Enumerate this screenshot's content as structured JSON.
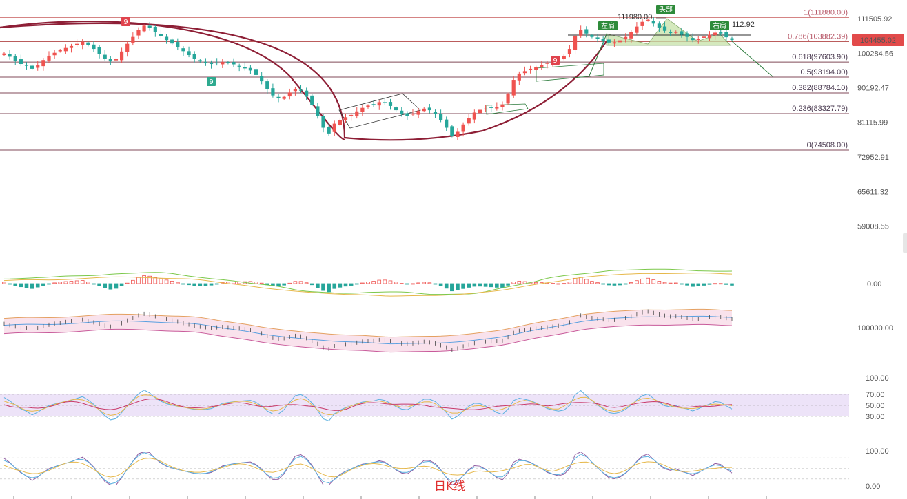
{
  "chart_data": {
    "type": "candlestick",
    "timeframe_label": "日K线",
    "last_price": 104455.02,
    "last_price_label": "104455.02",
    "price_axis": {
      "scale": "log",
      "ticks": [
        {
          "value": 111505.92,
          "label": "111505.92"
        },
        {
          "value": 100284.56,
          "label": "100284.56"
        },
        {
          "value": 90192.47,
          "label": "90192.47"
        },
        {
          "value": 81115.99,
          "label": "81115.99"
        },
        {
          "value": 72952.91,
          "label": "72952.91"
        },
        {
          "value": 65611.32,
          "label": "65611.32"
        },
        {
          "value": 59008.55,
          "label": "59008.55"
        }
      ]
    },
    "fibonacci_levels": [
      {
        "ratio": "1",
        "value": 111880.0,
        "label": "1(111880.00)"
      },
      {
        "ratio": "0.786",
        "value": 103882.39,
        "label": "0.786(103882.39)"
      },
      {
        "ratio": "0.618",
        "value": 97603.9,
        "label": "0.618(97603.90)"
      },
      {
        "ratio": "0.5",
        "value": 93194.0,
        "label": "0.5(93194.00)"
      },
      {
        "ratio": "0.382",
        "value": 88784.1,
        "label": "0.382(88784.10)"
      },
      {
        "ratio": "0.236",
        "value": 83327.79,
        "label": "0.236(83327.79)"
      },
      {
        "ratio": "0",
        "value": 74508.0,
        "label": "0(74508.00)"
      }
    ],
    "annotations": {
      "peak_label": "111980.00",
      "right_peak_label": "112.92",
      "left_shoulder": "左肩",
      "head": "头部",
      "right_shoulder": "右肩",
      "td_nine": "9"
    },
    "closes": [
      100200,
      99200,
      98000,
      97000,
      96500,
      95600,
      96800,
      98200,
      99500,
      100400,
      101200,
      101900,
      102500,
      103200,
      103800,
      102800,
      101600,
      100100,
      98600,
      97800,
      98600,
      100800,
      103200,
      105400,
      107600,
      109100,
      108400,
      106900,
      105600,
      104400,
      103300,
      102100,
      100900,
      99700,
      98600,
      97800,
      97300,
      97000,
      97200,
      97600,
      97300,
      96900,
      96300,
      95700,
      95100,
      93800,
      92000,
      89800,
      88100,
      87300,
      87700,
      88900,
      89900,
      89400,
      87800,
      85600,
      82800,
      79800,
      78400,
      80800,
      81700,
      82400,
      83000,
      83900,
      84800,
      85400,
      85700,
      86300,
      86100,
      85300,
      84200,
      83300,
      82800,
      83300,
      84000,
      84600,
      84200,
      83300,
      81700,
      79800,
      77800,
      78800,
      80600,
      82200,
      83600,
      84300,
      84600,
      84900,
      85100,
      85700,
      88500,
      92400,
      94200,
      94900,
      95600,
      96100,
      96800,
      97300,
      97900,
      98400,
      99500,
      101600,
      105800,
      107600,
      106500,
      105400,
      104700,
      104100,
      103600,
      103700,
      104300,
      105400,
      106900,
      108800,
      110400,
      111100,
      109800,
      108500,
      107400,
      106900,
      107100,
      106100,
      105400,
      104400,
      104800,
      105500,
      106100,
      106800,
      106500,
      105300,
      104455
    ],
    "oscillators": [
      {
        "name": "MACD",
        "axis_ticks": [
          {
            "value": 0,
            "label": "0.00"
          }
        ]
      },
      {
        "name": "BOLL",
        "axis_ticks": [
          {
            "value": 100000,
            "label": "100000.00"
          }
        ]
      },
      {
        "name": "RSI",
        "axis_ticks": [
          {
            "value": 100,
            "label": "100.00"
          },
          {
            "value": 70,
            "label": "70.00"
          },
          {
            "value": 50,
            "label": "50.00"
          },
          {
            "value": 30,
            "label": "30.00"
          }
        ]
      },
      {
        "name": "KDJ",
        "axis_ticks": [
          {
            "value": 100,
            "label": "100.00"
          },
          {
            "value": 0,
            "label": "0.00"
          }
        ]
      }
    ],
    "colors": {
      "up": "#ef5350",
      "down": "#26a69a",
      "rounding_bottom": "#8e1f36",
      "fib_top": "#c75a5a",
      "fib_line": "#6a2b3c",
      "neckline": "#2d2d2d",
      "pattern_fill": "#c6e2a8",
      "tag_green": "#2e8b3a",
      "tag_red": "#e0434d",
      "tag_teal": "#2eaa8f",
      "last_price_bg": "#e24a4a",
      "rsi_band": "#e9dcf6"
    }
  }
}
